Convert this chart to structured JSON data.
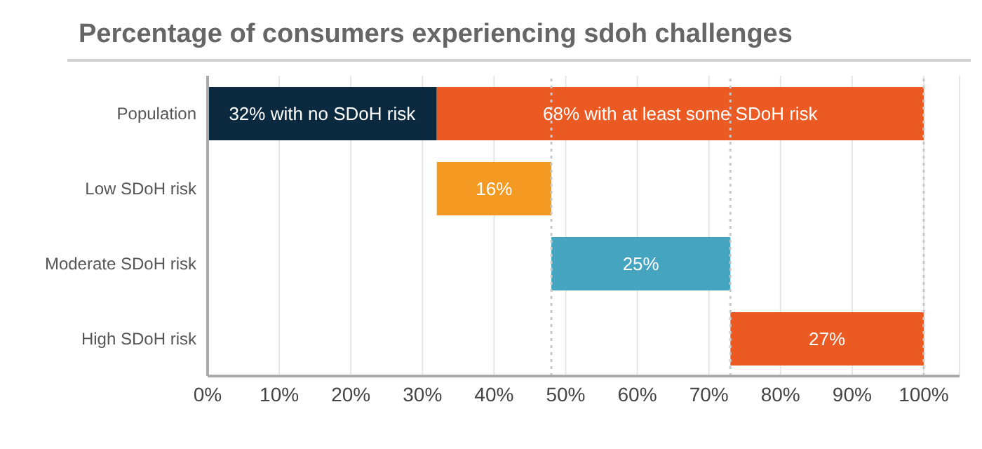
{
  "chart_data": {
    "type": "bar",
    "orientation": "horizontal",
    "title": "Percentage of consumers experiencing sdoh challenges",
    "categories": [
      "Population",
      "Low SDoH risk",
      "Moderate SDoH risk",
      "High SDoH risk"
    ],
    "series": [
      {
        "color": "#0b2a3f",
        "base": [
          0,
          null,
          null,
          null
        ],
        "values": [
          32,
          null,
          null,
          null
        ],
        "value_labels": [
          "32% with no SDoH risk",
          null,
          null,
          null
        ]
      },
      {
        "color": "#ec5a24",
        "base": [
          32,
          32,
          48,
          73
        ],
        "colors": [
          "#ec5a24",
          "#f49a22",
          "#45a5c1",
          "#ec5a24"
        ],
        "values": [
          68,
          16,
          25,
          27
        ],
        "value_labels": [
          "68% with at least some SDoH risk",
          "16%",
          "25%",
          "27%"
        ]
      }
    ],
    "xlim": [
      0,
      105
    ],
    "xticks": [
      {
        "value": 0,
        "label": "0%"
      },
      {
        "value": 10,
        "label": "10%"
      },
      {
        "value": 20,
        "label": "20%"
      },
      {
        "value": 30,
        "label": "30%"
      },
      {
        "value": 40,
        "label": "40%"
      },
      {
        "value": 50,
        "label": "50%"
      },
      {
        "value": 60,
        "label": "60%"
      },
      {
        "value": 70,
        "label": "70%"
      },
      {
        "value": 80,
        "label": "80%"
      },
      {
        "value": 90,
        "label": "90%"
      },
      {
        "value": 100,
        "label": "100%"
      }
    ],
    "ref_lines": [
      {
        "axis": "x",
        "value": 48,
        "color": "#c8c8c8",
        "line_style": "dotted"
      },
      {
        "axis": "x",
        "value": 73,
        "color": "#c8c8c8",
        "line_style": "dotted"
      },
      {
        "axis": "x",
        "value": 100,
        "color": "#c8c8c8",
        "line_style": "dotted"
      }
    ],
    "grid": "x",
    "legend": false
  }
}
